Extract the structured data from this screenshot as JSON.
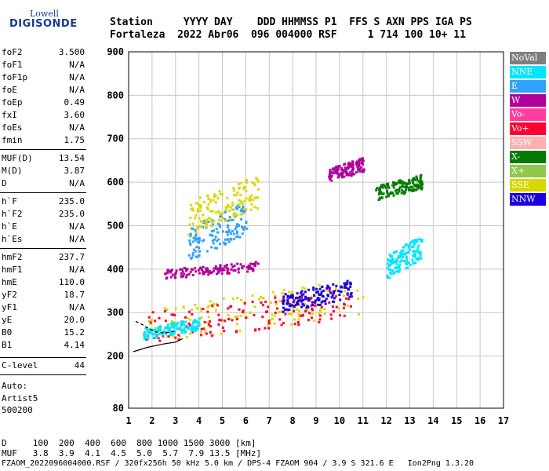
{
  "logo": {
    "line1": "Lowell",
    "line2": "DIGISONDE"
  },
  "header": {
    "row1": "Station     YYYY DAY    DDD HHMMSS P1  FFS S AXN PPS IGA PS",
    "row2": "Fortaleza  2022 Abr06  096 004000 RSF     1 714 100 10+ 11"
  },
  "params": [
    {
      "name": "foF2",
      "value": "3.500"
    },
    {
      "name": "foF1",
      "value": "N/A"
    },
    {
      "name": "foF1p",
      "value": "N/A"
    },
    {
      "name": "foE",
      "value": "N/A"
    },
    {
      "name": "foEp",
      "value": "0.49"
    },
    {
      "name": "fxI",
      "value": "3.60"
    },
    {
      "name": "foEs",
      "value": "N/A"
    },
    {
      "name": "fmin",
      "value": "1.75"
    },
    {
      "name": "MUF(D)",
      "value": "13.54"
    },
    {
      "name": "M(D)",
      "value": "3.87"
    },
    {
      "name": "D",
      "value": "N/A"
    },
    {
      "name": "h`F",
      "value": "235.0"
    },
    {
      "name": "h`F2",
      "value": "235.0"
    },
    {
      "name": "h`E",
      "value": "N/A"
    },
    {
      "name": "h`Es",
      "value": "N/A"
    },
    {
      "name": "hmF2",
      "value": "237.7"
    },
    {
      "name": "hmF1",
      "value": "N/A"
    },
    {
      "name": "hmE",
      "value": "110.0"
    },
    {
      "name": "yF2",
      "value": "18.7"
    },
    {
      "name": "yF1",
      "value": "N/A"
    },
    {
      "name": "yE",
      "value": "20.0"
    },
    {
      "name": "B0",
      "value": "15.2"
    },
    {
      "name": "B1",
      "value": "4.14"
    },
    {
      "name": "C-level",
      "value": "44"
    }
  ],
  "auto": {
    "line1": "Auto:",
    "line2": "Artist5",
    "line3": "500200"
  },
  "legend": [
    {
      "label": "NoVal",
      "color": "#7f7f7f"
    },
    {
      "label": "NNE",
      "color": "#00e5ff"
    },
    {
      "label": "E",
      "color": "#33a1ff"
    },
    {
      "label": "W",
      "color": "#b0009a"
    },
    {
      "label": "Vo-",
      "color": "#ff3fa0"
    },
    {
      "label": "Vo+",
      "color": "#ff0033"
    },
    {
      "label": "SSW",
      "color": "#ffb0b0"
    },
    {
      "label": "X-",
      "color": "#007a00"
    },
    {
      "label": "X+",
      "color": "#8fc74f"
    },
    {
      "label": "SSE",
      "color": "#d8d800"
    },
    {
      "label": "NNW",
      "color": "#1a00e0"
    }
  ],
  "chart_data": {
    "type": "scatter",
    "xlabel": "",
    "ylabel": "",
    "xlim": [
      1,
      17
    ],
    "ylim": [
      80,
      900
    ],
    "x_ticks": [
      "1",
      "2",
      "3",
      "4",
      "5",
      "6",
      "7",
      "8",
      "9",
      "10",
      "11",
      "12",
      "13",
      "14",
      "15",
      "16",
      "17"
    ],
    "y_ticks": [
      "200",
      "300",
      "400",
      "500",
      "600",
      "700",
      "800",
      "900"
    ],
    "y_tick_values": [
      200,
      300,
      400,
      500,
      600,
      700,
      800,
      900
    ],
    "y_bottom_label": "80",
    "grid": true,
    "clusters": [
      {
        "series": "SSE",
        "x0": 1.7,
        "x1": 11.0,
        "y0": 230,
        "y1": 380
      },
      {
        "series": "Vo+",
        "x0": 1.6,
        "x1": 10.5,
        "y0": 230,
        "y1": 360
      },
      {
        "series": "NNE",
        "x0": 1.6,
        "x1": 4.0,
        "y0": 240,
        "y1": 290
      },
      {
        "series": "W",
        "x0": 2.5,
        "x1": 6.5,
        "y0": 380,
        "y1": 420
      },
      {
        "series": "E",
        "x0": 3.5,
        "x1": 6.0,
        "y0": 420,
        "y1": 560
      },
      {
        "series": "SSE",
        "x0": 3.5,
        "x1": 6.5,
        "y0": 480,
        "y1": 620
      },
      {
        "series": "NNW",
        "x0": 7.5,
        "x1": 10.5,
        "y0": 300,
        "y1": 380
      },
      {
        "series": "NNE",
        "x0": 12.0,
        "x1": 13.5,
        "y0": 380,
        "y1": 480
      },
      {
        "series": "X-",
        "x0": 11.5,
        "x1": 13.5,
        "y0": 560,
        "y1": 620
      },
      {
        "series": "W",
        "x0": 9.5,
        "x1": 11.0,
        "y0": 600,
        "y1": 660
      }
    ],
    "trace_series": "NoVal",
    "trace": [
      [
        1.2,
        210
      ],
      [
        1.8,
        220
      ],
      [
        2.5,
        228
      ],
      [
        3.0,
        232
      ],
      [
        3.3,
        240
      ]
    ],
    "trace2": [
      [
        1.3,
        280
      ],
      [
        1.6,
        272
      ],
      [
        1.9,
        262
      ],
      [
        2.2,
        255
      ],
      [
        2.6,
        253
      ],
      [
        3.0,
        258
      ]
    ]
  },
  "footer": {
    "row1": "D     100  200  400  600  800 1000 1500 3000 [km]",
    "row2": "MUF   3.8  3.9  4.1  4.5  5.0  5.7  7.9 13.5 [MHz]",
    "row3": "FZAOM_2022096004000.RSF / 320fx256h 50 kHz 5.0 km / DPS-4 FZAOM 904 / 3.9 S 321.6 E   Ion2Png 1.3.20"
  }
}
